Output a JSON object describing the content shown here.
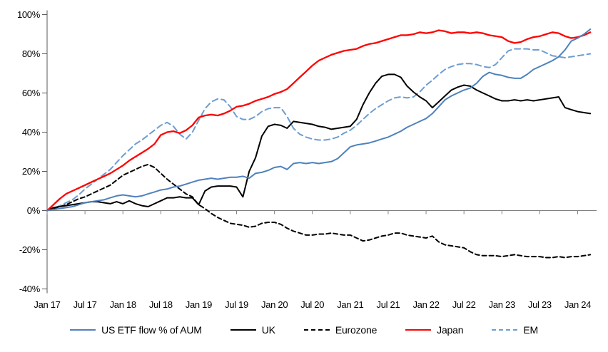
{
  "chart_data": {
    "type": "line",
    "title": "",
    "xlabel": "",
    "ylabel": "",
    "unit": "%",
    "grid": false,
    "legend_position": "bottom",
    "x_frequency": "monthly",
    "x_start": "Jan 17",
    "x_end": "Mar 24",
    "axis_color": "#808080",
    "text_color": "#000000",
    "y_axis": {
      "ylim": [
        -40,
        100
      ],
      "tick_values": [
        100,
        80,
        60,
        40,
        20,
        0,
        -20,
        -40
      ],
      "tick_labels": [
        "100%",
        "80%",
        "60%",
        "40%",
        "20%",
        "0%",
        "-20%",
        "-40%"
      ]
    },
    "x_axis": {
      "tick_months": [
        0,
        6,
        12,
        18,
        24,
        30,
        36,
        42,
        48,
        54,
        60,
        66,
        72,
        78,
        84
      ],
      "tick_labels": [
        "Jan 17",
        "Jul 17",
        "Jan 18",
        "Jul 18",
        "Jan 19",
        "Jul 19",
        "Jan 20",
        "Jul 20",
        "Jan 21",
        "Jul 21",
        "Jan 22",
        "Jul 22",
        "Jan 23",
        "Jul 23",
        "Jan 24"
      ]
    },
    "series": [
      {
        "id": "eurozone",
        "name": "Eurozone",
        "color": "#000000",
        "style": "dashed",
        "values": [
          0,
          1,
          2,
          3,
          4.5,
          6,
          7,
          8.5,
          10,
          11.5,
          13,
          15.5,
          18,
          19.5,
          21,
          22.5,
          23.5,
          22,
          19,
          16,
          13.5,
          11,
          8.5,
          7,
          3,
          1,
          -1.5,
          -3.5,
          -5,
          -6.5,
          -7,
          -7.5,
          -8.5,
          -8,
          -6.5,
          -6,
          -6,
          -7,
          -9,
          -10.5,
          -11.5,
          -12.5,
          -12.5,
          -12,
          -12,
          -11.5,
          -12,
          -12.5,
          -12.5,
          -14,
          -15.5,
          -15,
          -14,
          -13,
          -12.5,
          -11.5,
          -11.5,
          -12.5,
          -13,
          -13.5,
          -14,
          -13,
          -16,
          -17.5,
          -18,
          -18.5,
          -19,
          -21,
          -22.5,
          -23,
          -23,
          -23,
          -23.5,
          -23,
          -22.5,
          -23,
          -23.5,
          -23.5,
          -23.5,
          -24,
          -24,
          -23.5,
          -24,
          -23.5,
          -23.5,
          -23,
          -22.5
        ]
      },
      {
        "id": "em",
        "name": "EM",
        "color": "#6d9dd1",
        "style": "dashed",
        "values": [
          0,
          1,
          2.5,
          4,
          5.5,
          8,
          11,
          13.5,
          16,
          18.5,
          21,
          24.5,
          28,
          31,
          34,
          36,
          38.5,
          41,
          43.5,
          45,
          43,
          39,
          36.5,
          40,
          46,
          52,
          55.5,
          57,
          56.5,
          53,
          48,
          46.5,
          46.5,
          48,
          50.5,
          52,
          52.5,
          52.5,
          48,
          42,
          39,
          37.5,
          36.5,
          36,
          36,
          36.5,
          37.5,
          39.5,
          41,
          43.5,
          46.5,
          49.5,
          52,
          54,
          56,
          57.5,
          58,
          57.5,
          58,
          60.5,
          64,
          66.5,
          69.5,
          72,
          73.5,
          74.5,
          75,
          75,
          74.5,
          73.5,
          73,
          74.5,
          78,
          81.5,
          82.5,
          82.5,
          82.5,
          82,
          82,
          80.5,
          79,
          78.5,
          78,
          78.5,
          79,
          79.5,
          80
        ]
      },
      {
        "id": "uk",
        "name": "UK",
        "color": "#000000",
        "style": "solid",
        "values": [
          0,
          1.5,
          2,
          2.5,
          3,
          3.5,
          4,
          4.5,
          4.5,
          4,
          3.5,
          4.5,
          3.5,
          5,
          3.5,
          2.5,
          2,
          3.5,
          5,
          6.5,
          6.5,
          7,
          6.5,
          6.5,
          3,
          10,
          12,
          12.5,
          12.5,
          12.5,
          12,
          7,
          20,
          27,
          38,
          43,
          44,
          43.5,
          42,
          45.5,
          45,
          44.5,
          44,
          43,
          42.5,
          41.5,
          42,
          42.5,
          43,
          46.5,
          54,
          60,
          65,
          68.5,
          69.5,
          69.5,
          68,
          63.5,
          60.5,
          58,
          56,
          52.5,
          55.5,
          58.5,
          61.5,
          63,
          64,
          63.5,
          61.5,
          60,
          58.5,
          57,
          56,
          56,
          56.5,
          56,
          56.5,
          56,
          56.5,
          57,
          57.5,
          58,
          52.5,
          51.5,
          50.5,
          50,
          49.5
        ]
      },
      {
        "id": "japan",
        "name": "Japan",
        "color": "#ff0000",
        "style": "solid",
        "values": [
          0,
          3,
          6,
          8.5,
          10,
          11.5,
          13,
          14.5,
          16,
          17.5,
          19,
          21,
          23,
          25.5,
          27.5,
          29.5,
          31.5,
          34,
          38.5,
          40,
          40.5,
          39.5,
          41,
          43.5,
          47.5,
          48.5,
          49,
          48.5,
          49.5,
          51,
          53,
          53.5,
          54.5,
          56,
          57,
          58,
          59.5,
          60.5,
          62,
          65,
          68,
          71,
          74,
          76.5,
          78,
          79.5,
          80.5,
          81.5,
          82,
          82.5,
          84,
          85,
          85.5,
          86.5,
          87.5,
          88.5,
          89.5,
          89.5,
          90,
          91,
          90.5,
          91,
          92,
          91.5,
          90.5,
          91,
          91,
          90.5,
          91,
          90.5,
          89.5,
          89,
          88.5,
          86.5,
          85.5,
          86,
          87.5,
          88.5,
          89,
          90,
          91,
          90.5,
          89,
          88,
          88.5,
          89.5,
          91
        ]
      },
      {
        "id": "us",
        "name": "US ETF flow % of AUM",
        "color": "#4e81bd",
        "style": "solid",
        "values": [
          0,
          0.5,
          1,
          1.5,
          2,
          3,
          4,
          4.5,
          5,
          5.5,
          6.5,
          7.5,
          8,
          7.5,
          7,
          7.5,
          8.5,
          9.5,
          10.5,
          11,
          12,
          12.5,
          13.5,
          14.5,
          15.5,
          16,
          16.5,
          16,
          16.5,
          17,
          17,
          17.5,
          16.5,
          19,
          19.5,
          20.5,
          22,
          22.5,
          21,
          24,
          24.5,
          24,
          24.5,
          24,
          24.5,
          25,
          26.5,
          29.5,
          32.5,
          33.5,
          34,
          34.5,
          35.5,
          36.5,
          37.5,
          39,
          40.5,
          42.5,
          44,
          45.5,
          47,
          49.5,
          53,
          56.5,
          58.5,
          60,
          61.5,
          62.5,
          65,
          68.5,
          70.5,
          69.5,
          69,
          68,
          67.5,
          67.5,
          69.5,
          72,
          73.5,
          75,
          76.5,
          78.5,
          82,
          86.5,
          88,
          90,
          92.5
        ]
      }
    ],
    "legend_order": [
      "us",
      "uk",
      "eurozone",
      "japan",
      "em"
    ]
  }
}
